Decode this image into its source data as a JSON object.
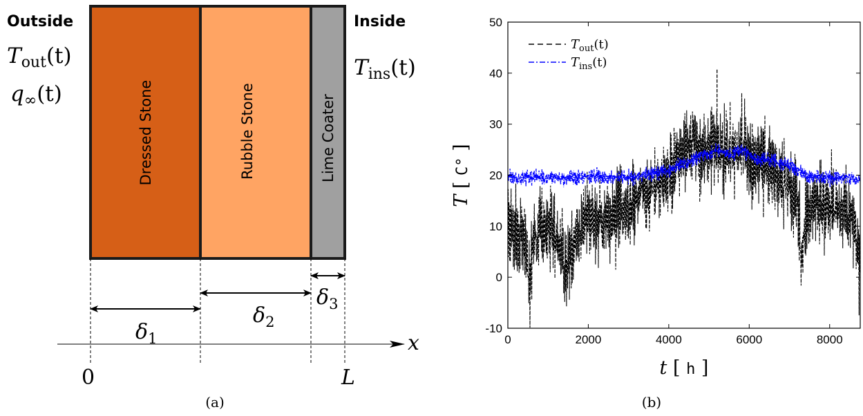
{
  "panel_a": {
    "outside_label": "Outside",
    "inside_label": "Inside",
    "outside_temp": "T",
    "outside_temp_sub": "out",
    "outside_flux": "q",
    "outside_flux_sub": "∞",
    "inside_temp": "T",
    "inside_temp_sub": "ins",
    "time_arg": "(t)",
    "layers": [
      {
        "label": "Dressed Stone",
        "color": "#d65f17"
      },
      {
        "label": "Rubble Stone",
        "color": "#ffa463"
      },
      {
        "label": "Lime Coater",
        "color": "#a0a0a0"
      }
    ],
    "delta": "δ",
    "delta_subs": [
      "1",
      "2",
      "3"
    ],
    "axis_var": "x",
    "origin_label": "0",
    "end_label": "L",
    "caption": "(a)"
  },
  "chart_data": {
    "type": "line",
    "xlabel_var": "t",
    "xlabel_unit": "h",
    "ylabel_var": "T",
    "ylabel_unit": "C°",
    "xlim": [
      0,
      8760
    ],
    "ylim": [
      -10,
      50
    ],
    "xticks": [
      0,
      2000,
      4000,
      6000,
      8000
    ],
    "yticks": [
      -10,
      0,
      10,
      20,
      30,
      40,
      50
    ],
    "legend_position": "top-left",
    "series": [
      {
        "name": "T",
        "sub": "out",
        "arg": "(t)",
        "color": "#000000",
        "dash": "dashed",
        "x": [
          0,
          200,
          400,
          550,
          600,
          800,
          1000,
          1200,
          1450,
          1600,
          1800,
          2000,
          2200,
          2400,
          2600,
          2800,
          3000,
          3200,
          3400,
          3600,
          3800,
          4000,
          4200,
          4400,
          4600,
          4800,
          5000,
          5200,
          5400,
          5600,
          5800,
          6000,
          6200,
          6400,
          6600,
          6800,
          7000,
          7200,
          7300,
          7400,
          7600,
          7800,
          8000,
          8200,
          8400,
          8600,
          8760
        ],
        "y": [
          9,
          10,
          8,
          -3,
          6,
          10,
          8,
          9,
          1,
          7,
          9,
          12,
          12,
          10,
          12,
          13,
          14,
          16,
          17,
          18,
          19,
          20,
          22,
          24,
          26,
          24,
          25,
          27,
          24,
          25,
          26,
          24,
          23,
          22,
          21,
          19,
          18,
          14,
          3,
          12,
          14,
          15,
          14,
          13,
          12,
          12,
          2
        ]
      },
      {
        "name": "T",
        "sub": "ins",
        "arg": "(t)",
        "color": "#0000ff",
        "dash": "dashdot",
        "x": [
          0,
          500,
          1000,
          1500,
          2000,
          2200,
          2500,
          3000,
          3500,
          4000,
          4300,
          4600,
          4800,
          5000,
          5200,
          5400,
          5600,
          5800,
          6000,
          6200,
          6400,
          6600,
          6800,
          7000,
          7200,
          7400,
          7600,
          8000,
          8500,
          8760
        ],
        "y": [
          19.5,
          19.5,
          19.5,
          19.5,
          19.5,
          20,
          19.5,
          19.5,
          20,
          21,
          22,
          23,
          24,
          24,
          25,
          24,
          24,
          25,
          24,
          23,
          23,
          23,
          22,
          22,
          21,
          20,
          19.5,
          19.5,
          19.5,
          19
        ]
      },
      {
        "name": "",
        "color": "#000000",
        "role": "peak",
        "x": 5200,
        "y": 40.7
      }
    ],
    "caption": "(b)"
  }
}
